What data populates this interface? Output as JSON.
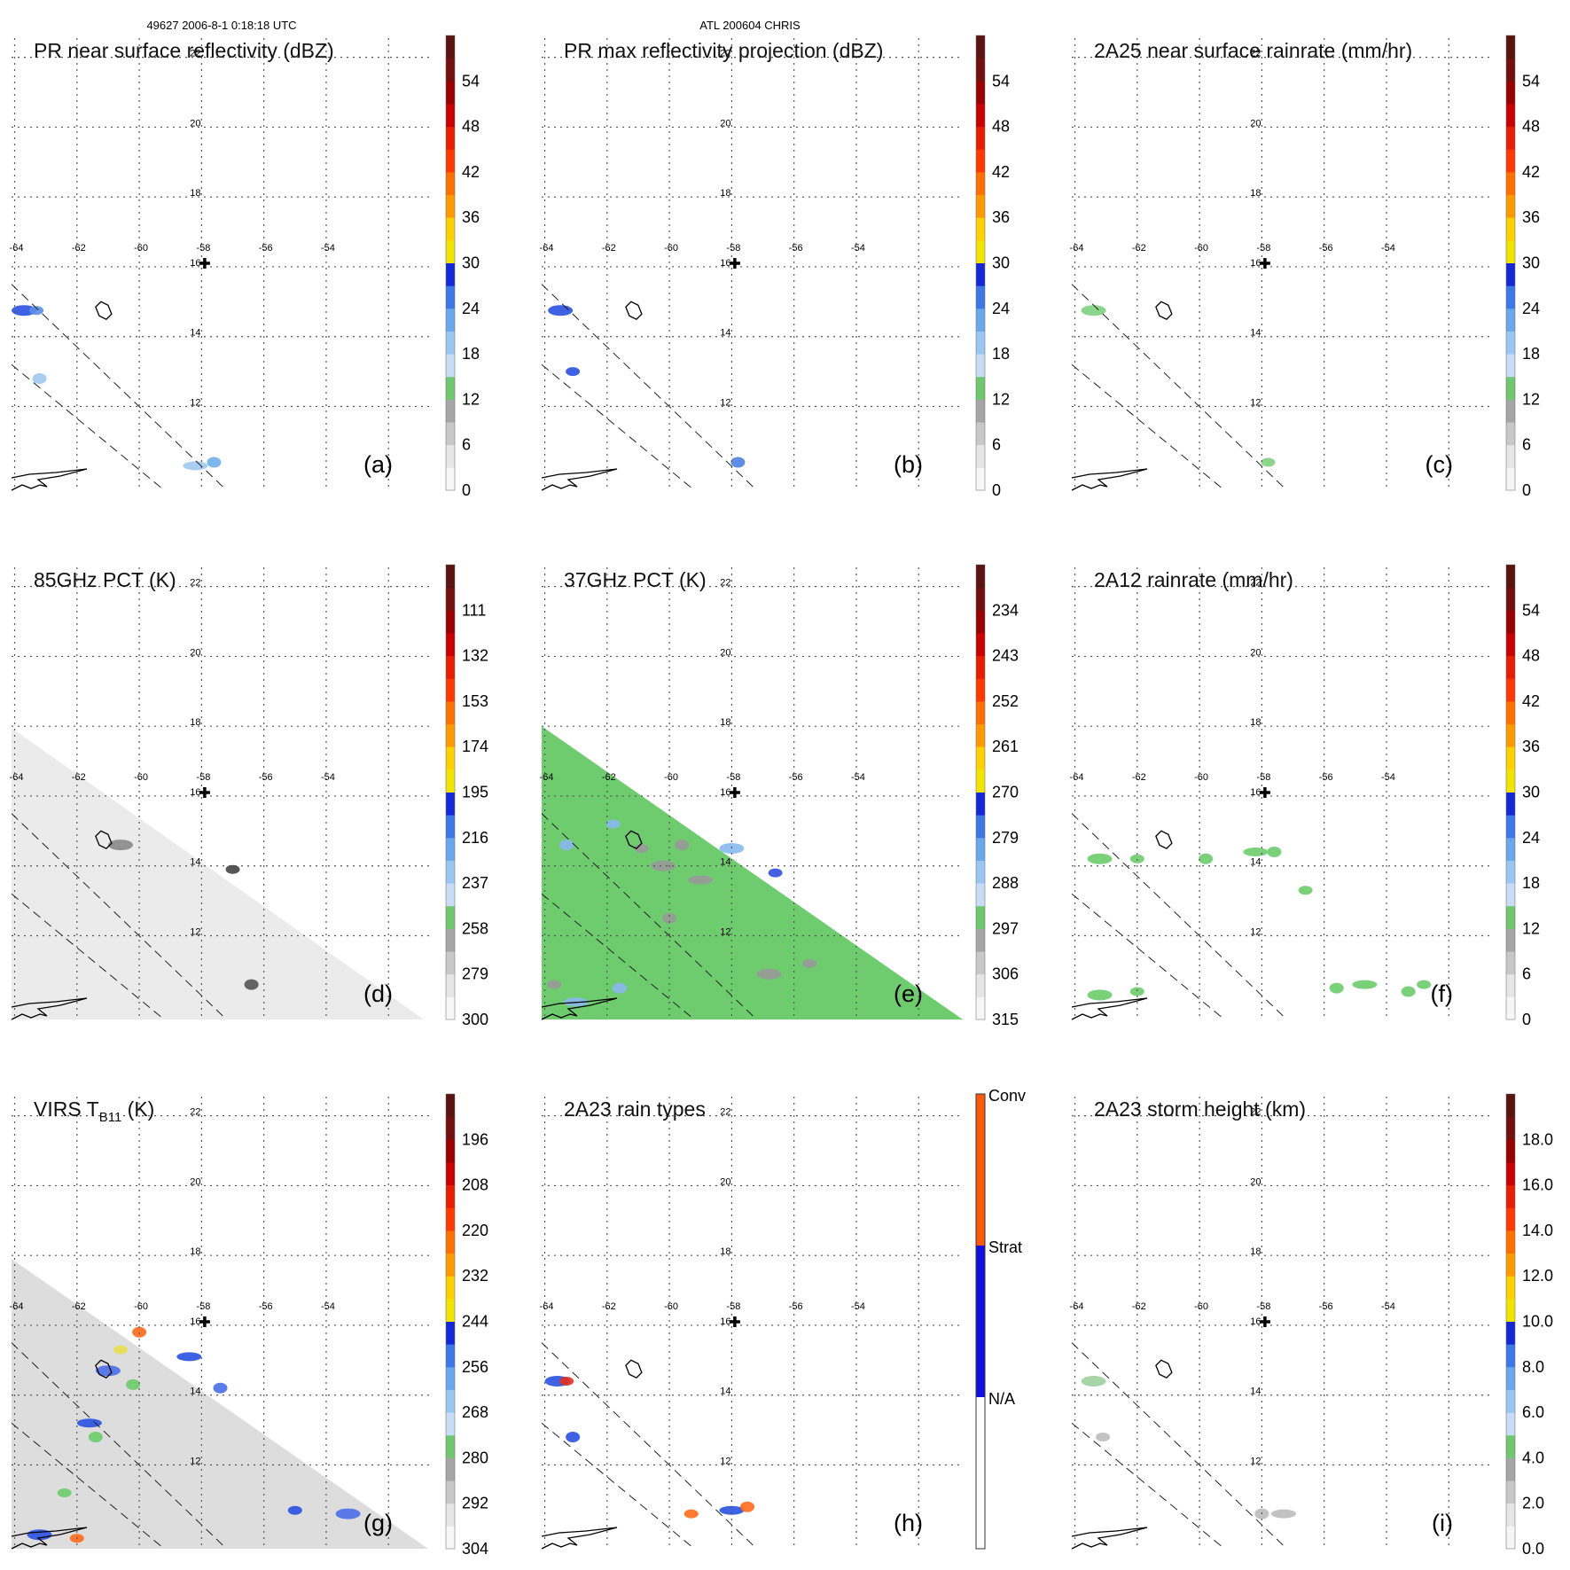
{
  "header": {
    "orbit_time": "49627 2006-8-1 0:18:18 UTC",
    "storm": "ATL 200604 CHRIS"
  },
  "geo": {
    "lon_ticks": [
      "-64",
      "-62",
      "-60",
      "-58",
      "-56",
      "-54"
    ],
    "lat_ticks": [
      "12",
      "14",
      "16",
      "18",
      "20",
      "22"
    ]
  },
  "chart_data": [
    {
      "type": "heatmap",
      "panel": "(a)",
      "title": "PR near surface reflectivity (dBZ)",
      "colorbar": {
        "ticks": [
          "0",
          "6",
          "12",
          "18",
          "24",
          "30",
          "36",
          "42",
          "48",
          "54"
        ]
      },
      "echoes": [
        {
          "lon": -63.7,
          "lat": 14.75,
          "color": "#2a50e0"
        },
        {
          "lon": -63.3,
          "lat": 14.75,
          "color": "#5a8ee8"
        },
        {
          "lon": -63.2,
          "lat": 12.8,
          "color": "#a0c8f0"
        },
        {
          "lon": -58.2,
          "lat": 10.3,
          "color": "#a0c8f0"
        },
        {
          "lon": -57.6,
          "lat": 10.4,
          "color": "#70b0e8"
        }
      ]
    },
    {
      "type": "heatmap",
      "panel": "(b)",
      "title": "PR max reflectivity projection (dBZ)",
      "colorbar": {
        "ticks": [
          "0",
          "6",
          "12",
          "18",
          "24",
          "30",
          "36",
          "42",
          "48",
          "54"
        ]
      },
      "echoes": [
        {
          "lon": -63.5,
          "lat": 14.75,
          "color": "#2a50e0"
        },
        {
          "lon": -63.1,
          "lat": 13.0,
          "color": "#2a50e0"
        },
        {
          "lon": -57.8,
          "lat": 10.4,
          "color": "#4a80e0"
        }
      ]
    },
    {
      "type": "heatmap",
      "panel": "(c)",
      "title": "2A25 near surface rainrate (mm/hr)",
      "colorbar": {
        "ticks": [
          "0",
          "6",
          "12",
          "18",
          "24",
          "30",
          "36",
          "42",
          "48",
          "54"
        ]
      },
      "echoes": [
        {
          "lon": -63.4,
          "lat": 14.75,
          "color": "#80d080"
        },
        {
          "lon": -57.8,
          "lat": 10.4,
          "color": "#80d080"
        }
      ]
    },
    {
      "type": "heatmap",
      "panel": "(d)",
      "title": "85GHz PCT (K)",
      "colorbar": {
        "ticks": [
          "300",
          "279",
          "258",
          "237",
          "216",
          "195",
          "174",
          "153",
          "132",
          "111"
        ]
      },
      "swath": {
        "base_color": "#ebebeb"
      },
      "echoes": [
        {
          "lon": -60.6,
          "lat": 14.6,
          "color": "#888888"
        },
        {
          "lon": -57.0,
          "lat": 13.9,
          "color": "#444444"
        },
        {
          "lon": -56.4,
          "lat": 10.6,
          "color": "#555555"
        }
      ]
    },
    {
      "type": "heatmap",
      "panel": "(e)",
      "title": "37GHz PCT (K)",
      "colorbar": {
        "ticks": [
          "315",
          "306",
          "297",
          "288",
          "279",
          "270",
          "261",
          "252",
          "243",
          "234"
        ]
      },
      "swath": {
        "base_color": "#6ecc6e"
      },
      "echoes": [
        {
          "lon": -60.2,
          "lat": 14.0,
          "color": "#999999"
        },
        {
          "lon": -60.9,
          "lat": 14.5,
          "color": "#999999"
        },
        {
          "lon": -59.6,
          "lat": 14.6,
          "color": "#999999"
        },
        {
          "lon": -59.0,
          "lat": 13.6,
          "color": "#999999"
        },
        {
          "lon": -60.0,
          "lat": 12.5,
          "color": "#999999"
        },
        {
          "lon": -61.8,
          "lat": 15.2,
          "color": "#88b8f0"
        },
        {
          "lon": -58.0,
          "lat": 14.5,
          "color": "#88b8f0"
        },
        {
          "lon": -56.6,
          "lat": 13.8,
          "color": "#3050e0"
        },
        {
          "lon": -63.3,
          "lat": 14.6,
          "color": "#88b8f0"
        },
        {
          "lon": -63.0,
          "lat": 10.1,
          "color": "#88b8f0"
        },
        {
          "lon": -61.6,
          "lat": 10.5,
          "color": "#88b8f0"
        },
        {
          "lon": -63.7,
          "lat": 10.6,
          "color": "#999999"
        },
        {
          "lon": -56.8,
          "lat": 10.9,
          "color": "#999999"
        },
        {
          "lon": -55.5,
          "lat": 11.2,
          "color": "#999999"
        }
      ]
    },
    {
      "type": "heatmap",
      "panel": "(f)",
      "title": "2A12 rainrate (mm/hr)",
      "colorbar": {
        "ticks": [
          "0",
          "6",
          "12",
          "18",
          "24",
          "30",
          "36",
          "42",
          "48",
          "54"
        ]
      },
      "echoes": [
        {
          "lon": -63.2,
          "lat": 14.2,
          "color": "#6ccc6c"
        },
        {
          "lon": -62.0,
          "lat": 14.2,
          "color": "#6ccc6c"
        },
        {
          "lon": -59.8,
          "lat": 14.2,
          "color": "#6ccc6c"
        },
        {
          "lon": -58.2,
          "lat": 14.4,
          "color": "#6ccc6c"
        },
        {
          "lon": -57.6,
          "lat": 14.4,
          "color": "#6ccc6c"
        },
        {
          "lon": -56.6,
          "lat": 13.3,
          "color": "#6ccc6c"
        },
        {
          "lon": -63.2,
          "lat": 10.3,
          "color": "#6ccc6c"
        },
        {
          "lon": -62.0,
          "lat": 10.4,
          "color": "#6ccc6c"
        },
        {
          "lon": -55.6,
          "lat": 10.5,
          "color": "#6ccc6c"
        },
        {
          "lon": -54.7,
          "lat": 10.6,
          "color": "#6ccc6c"
        },
        {
          "lon": -53.3,
          "lat": 10.4,
          "color": "#6ccc6c"
        },
        {
          "lon": -52.8,
          "lat": 10.6,
          "color": "#6ccc6c"
        }
      ]
    },
    {
      "type": "heatmap",
      "panel": "(g)",
      "title": "VIRS T",
      "title_subscript": "B11",
      "title_suffix": " (K)",
      "colorbar": {
        "ticks": [
          "304",
          "292",
          "280",
          "268",
          "256",
          "244",
          "232",
          "220",
          "208",
          "196"
        ]
      },
      "swath": {
        "base_color": "#dddddd"
      },
      "echoes": [
        {
          "lon": -61.0,
          "lat": 14.7,
          "color": "#4a6ee8"
        },
        {
          "lon": -60.6,
          "lat": 15.3,
          "color": "#e8e050"
        },
        {
          "lon": -60.2,
          "lat": 14.3,
          "color": "#6ccc6c"
        },
        {
          "lon": -61.6,
          "lat": 13.2,
          "color": "#2a50e0"
        },
        {
          "lon": -61.4,
          "lat": 12.8,
          "color": "#6ccc6c"
        },
        {
          "lon": -62.4,
          "lat": 11.2,
          "color": "#6ccc6c"
        },
        {
          "lon": -63.2,
          "lat": 10.0,
          "color": "#2a50e0"
        },
        {
          "lon": -62.0,
          "lat": 9.9,
          "color": "#ff6a1a"
        },
        {
          "lon": -60.0,
          "lat": 15.8,
          "color": "#ff6a1a"
        },
        {
          "lon": -58.4,
          "lat": 15.1,
          "color": "#2a50e0"
        },
        {
          "lon": -57.4,
          "lat": 14.2,
          "color": "#4a6ee8"
        },
        {
          "lon": -55.0,
          "lat": 10.7,
          "color": "#2a50e0"
        },
        {
          "lon": -53.3,
          "lat": 10.6,
          "color": "#4a6ee8"
        }
      ]
    },
    {
      "type": "heatmap",
      "panel": "(h)",
      "title": "2A23 rain types",
      "colorbar": {
        "ticks": [
          "N/A",
          "Strat",
          "Conv"
        ]
      },
      "echoes": [
        {
          "lon": -63.6,
          "lat": 14.4,
          "color": "#2a50e0"
        },
        {
          "lon": -63.3,
          "lat": 14.4,
          "color": "#e03020"
        },
        {
          "lon": -63.1,
          "lat": 12.8,
          "color": "#2a50e0"
        },
        {
          "lon": -58.0,
          "lat": 10.7,
          "color": "#2a50e0"
        },
        {
          "lon": -57.5,
          "lat": 10.8,
          "color": "#ff6a1a"
        },
        {
          "lon": -59.3,
          "lat": 10.6,
          "color": "#ff6a1a"
        }
      ]
    },
    {
      "type": "heatmap",
      "panel": "(i)",
      "title": "2A23 storm height (km)",
      "colorbar": {
        "ticks": [
          "0.0",
          "2.0",
          "4.0",
          "6.0",
          "8.0",
          "10.0",
          "12.0",
          "14.0",
          "16.0",
          "18.0"
        ]
      },
      "echoes": [
        {
          "lon": -63.4,
          "lat": 14.4,
          "color": "#9ecf9e"
        },
        {
          "lon": -63.1,
          "lat": 12.8,
          "color": "#bbbbbb"
        },
        {
          "lon": -58.0,
          "lat": 10.6,
          "color": "#bbbbbb"
        },
        {
          "lon": -57.3,
          "lat": 10.6,
          "color": "#bbbbbb"
        }
      ]
    }
  ]
}
